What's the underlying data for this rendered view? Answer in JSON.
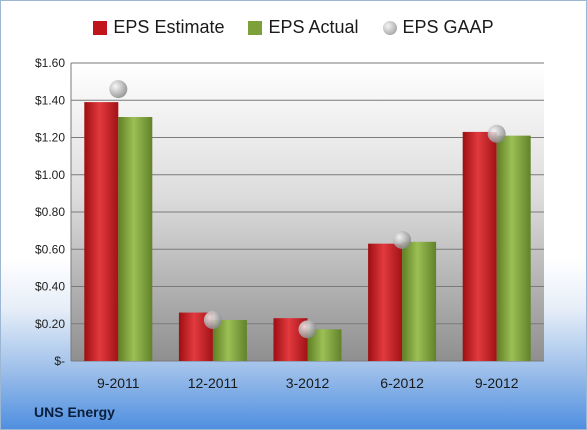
{
  "company": "UNS Energy",
  "colors": {
    "estimate": "#c0161b",
    "actual": "#7ea03a",
    "gaap": "#a9a9a9"
  },
  "chart_data": {
    "type": "bar",
    "categories": [
      "9-2011",
      "12-2011",
      "3-2012",
      "6-2012",
      "9-2012"
    ],
    "series": [
      {
        "name": "EPS Estimate",
        "values": [
          1.39,
          0.26,
          0.23,
          0.63,
          1.23
        ]
      },
      {
        "name": "EPS Actual",
        "values": [
          1.31,
          0.22,
          0.17,
          0.64,
          1.21
        ]
      },
      {
        "name": "EPS GAAP",
        "render": "marker",
        "values": [
          1.46,
          0.22,
          0.17,
          0.65,
          1.22
        ]
      }
    ],
    "ylim": [
      0,
      1.6
    ],
    "yticks": [
      0,
      0.2,
      0.4,
      0.6,
      0.8,
      1.0,
      1.2,
      1.4,
      1.6
    ],
    "ytick_labels": [
      "$-",
      "$0.20",
      "$0.40",
      "$0.60",
      "$0.80",
      "$1.00",
      "$1.20",
      "$1.40",
      "$1.60"
    ],
    "grid": true,
    "legend": "top"
  }
}
